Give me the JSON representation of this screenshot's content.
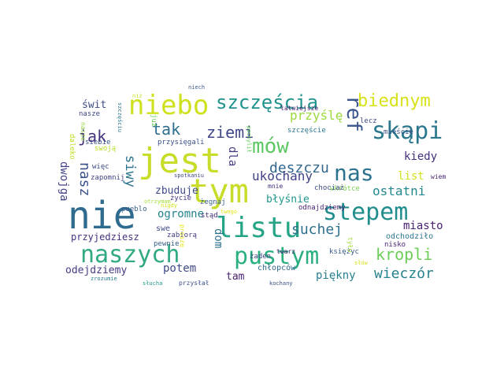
{
  "words": [
    {
      "text": "nie",
      "color": "#2f6b8e",
      "rot": 0
    },
    {
      "text": "jest",
      "color": "#c8dc2a",
      "rot": 0
    },
    {
      "text": "tym",
      "color": "#c8dc2a",
      "rot": 0
    },
    {
      "text": "listu",
      "color": "#25a585",
      "rot": 0
    },
    {
      "text": "naszych",
      "color": "#31a984",
      "rot": 0
    },
    {
      "text": "pustym",
      "color": "#2ab07f",
      "rot": 0
    },
    {
      "text": "stepem",
      "color": "#218e8d",
      "rot": 0
    },
    {
      "text": "nas",
      "color": "#2c728e",
      "rot": 0
    },
    {
      "text": "mów",
      "color": "#5dc863",
      "rot": 0
    },
    {
      "text": "niebo",
      "color": "#cfe11c",
      "rot": 0
    },
    {
      "text": "skąpi",
      "color": "#2a778e",
      "rot": 0
    },
    {
      "text": "szczęścia",
      "color": "#20928c",
      "rot": 0
    },
    {
      "text": "ref",
      "color": "#3a548c",
      "rot": 90
    },
    {
      "text": "biednym",
      "color": "#d7e219",
      "rot": 0
    },
    {
      "text": "ziemi",
      "color": "#3f4788",
      "rot": 0
    },
    {
      "text": "tak",
      "color": "#2e6e8e",
      "rot": 0
    },
    {
      "text": "jak",
      "color": "#46337e",
      "rot": 0
    },
    {
      "text": "deszczu",
      "color": "#31668e",
      "rot": 0
    },
    {
      "text": "suchej",
      "color": "#2d708e",
      "rot": 0
    },
    {
      "text": "kropli",
      "color": "#6cce59",
      "rot": 0
    },
    {
      "text": "wieczór",
      "color": "#26828e",
      "rot": 0
    },
    {
      "text": "ukochany",
      "color": "#414287",
      "rot": 0
    },
    {
      "text": "ostatni",
      "color": "#23898e",
      "rot": 0
    },
    {
      "text": "przyślę",
      "color": "#9bd93c",
      "rot": 0
    },
    {
      "text": "kiedy",
      "color": "#46307e",
      "rot": 0
    },
    {
      "text": "list",
      "color": "#d2e21b",
      "rot": 0
    },
    {
      "text": "miasto",
      "color": "#482173",
      "rot": 0
    },
    {
      "text": "zbuduje",
      "color": "#3f4889",
      "rot": 0
    },
    {
      "text": "błyśnie",
      "color": "#1f988b",
      "rot": 0
    },
    {
      "text": "nasz",
      "color": "#3b528b",
      "rot": 90
    },
    {
      "text": "dwojga",
      "color": "#414287",
      "rot": 90
    },
    {
      "text": "siwy",
      "color": "#2c738e",
      "rot": 90
    },
    {
      "text": "dla",
      "color": "#443a83",
      "rot": 90
    },
    {
      "text": "dom",
      "color": "#2d708e",
      "rot": 90
    },
    {
      "text": "ogromne",
      "color": "#25838e",
      "rot": 0
    },
    {
      "text": "potem",
      "color": "#3e4a89",
      "rot": 0
    },
    {
      "text": "tam",
      "color": "#481f70",
      "rot": 0
    },
    {
      "text": "piękny",
      "color": "#27808e",
      "rot": 0
    },
    {
      "text": "odejdziemy",
      "color": "#433d84",
      "rot": 0
    },
    {
      "text": "świt",
      "color": "#3e4c8a",
      "rot": 0
    },
    {
      "text": "przyjedziesz",
      "color": "#46307e",
      "rot": 0
    },
    {
      "text": "odnajdziemy",
      "color": "#482576",
      "rot": 0
    },
    {
      "text": "odchodziło",
      "color": "#2a778e",
      "rot": 0
    },
    {
      "text": "chłopców",
      "color": "#31688e",
      "rot": 0
    },
    {
      "text": "zabiorą",
      "color": "#433e85",
      "rot": 0
    },
    {
      "text": "pewnie",
      "color": "#355f8d",
      "rot": 0
    },
    {
      "text": "swe",
      "color": "#3d4e8a",
      "rot": 0
    },
    {
      "text": "stąd",
      "color": "#472c7a",
      "rot": 0
    },
    {
      "text": "żegnaj",
      "color": "#355e8d",
      "rot": 0
    },
    {
      "text": "księżyc",
      "color": "#38598c",
      "rot": 0
    },
    {
      "text": "nisko",
      "color": "#482475",
      "rot": 0
    },
    {
      "text": "wkrótce",
      "color": "#7ad151",
      "rot": 0
    },
    {
      "text": "wiem",
      "color": "#481b6d",
      "rot": 0
    },
    {
      "text": "lecz",
      "color": "#3f4889",
      "rot": 0
    },
    {
      "text": "mieście",
      "color": "#3b518b",
      "rot": 0
    },
    {
      "text": "szczęście",
      "color": "#2b748e",
      "rot": 0
    },
    {
      "text": "chociaż",
      "color": "#3e4c8a",
      "rot": 0
    },
    {
      "text": "mnie",
      "color": "#46327e",
      "rot": 0
    },
    {
      "text": "spotkaniu",
      "color": "#3f4788",
      "rot": 0
    },
    {
      "text": "życie",
      "color": "#443a83",
      "rot": 0
    },
    {
      "text": "pueblo",
      "color": "#355e8d",
      "rot": 0
    },
    {
      "text": "więc",
      "color": "#3e4989",
      "rot": 0
    },
    {
      "text": "zapomnij",
      "color": "#414487",
      "rot": 0
    },
    {
      "text": "swoją",
      "color": "#b5de2b",
      "rot": 0
    },
    {
      "text": "siebie",
      "color": "#3b528b",
      "rot": 0
    },
    {
      "text": "przysięgali",
      "color": "#3b528b",
      "rot": 0
    },
    {
      "text": "już",
      "color": "#6ece58",
      "rot": 90
    },
    {
      "text": "szczęściu",
      "color": "#2a788e",
      "rot": 90
    },
    {
      "text": "nasze",
      "color": "#95d840",
      "rot": 90
    },
    {
      "text": "nasze",
      "color": "#3f4788",
      "rot": 0
    },
    {
      "text": "daleko",
      "color": "#bddf26",
      "rot": 90
    },
    {
      "text": "niech",
      "color": "#39568c",
      "rot": 0
    },
    {
      "text": "łatwiejsze",
      "color": "#482071",
      "rot": 0
    },
    {
      "text": "otrzymam",
      "color": "#a2da37",
      "rot": 0
    },
    {
      "text": "nigdy",
      "color": "#d0e11c",
      "rot": 0
    },
    {
      "text": "twego",
      "color": "#e5e419",
      "rot": 0
    },
    {
      "text": "proszę",
      "color": "#e7e419",
      "rot": 90
    },
    {
      "text": "pochylił",
      "color": "#67cc5c",
      "rot": 90
    },
    {
      "text": "tyłu",
      "color": "#a5db36",
      "rot": 90
    },
    {
      "text": "słów",
      "color": "#d5e21a",
      "rot": 0
    },
    {
      "text": "żaden",
      "color": "#3f4788",
      "rot": 0
    },
    {
      "text": "twarz",
      "color": "#482878",
      "rot": 0
    },
    {
      "text": "kochany",
      "color": "#3b528b",
      "rot": 0
    },
    {
      "text": "zrozumie",
      "color": "#287c8e",
      "rot": 0
    },
    {
      "text": "słucha",
      "color": "#1f988b",
      "rot": 0
    },
    {
      "text": "przysłał",
      "color": "#3b528b",
      "rot": 0
    },
    {
      "text": "niż",
      "color": "#c0df25",
      "rot": 0
    }
  ]
}
